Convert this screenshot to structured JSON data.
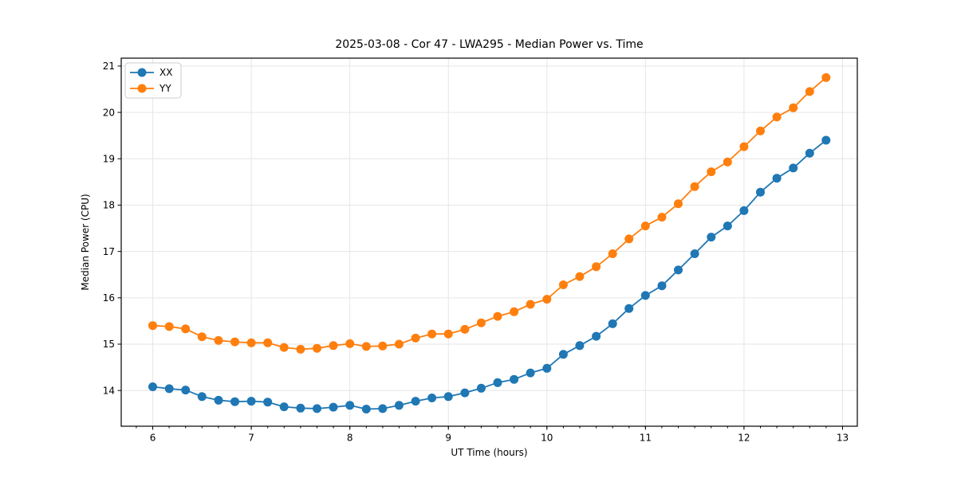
{
  "chart_data": {
    "type": "line",
    "title": "2025-03-08 - Cor 47 - LWA295 - Median Power vs. Time",
    "xlabel": "UT Time (hours)",
    "ylabel": "Median Power (CPU)",
    "xlim": [
      5.68,
      13.15
    ],
    "ylim": [
      13.23,
      21.17
    ],
    "x_ticks": [
      6,
      7,
      8,
      9,
      10,
      11,
      12,
      13
    ],
    "y_ticks": [
      14,
      15,
      16,
      17,
      18,
      19,
      20,
      21
    ],
    "x_minor_step": 0.166667,
    "grid": true,
    "grid_color": "#e6e6e6",
    "legend_position": "upper-left",
    "x": [
      6.0,
      6.167,
      6.333,
      6.5,
      6.667,
      6.833,
      7.0,
      7.167,
      7.333,
      7.5,
      7.667,
      7.833,
      8.0,
      8.167,
      8.333,
      8.5,
      8.667,
      8.833,
      9.0,
      9.167,
      9.333,
      9.5,
      9.667,
      9.833,
      10.0,
      10.167,
      10.333,
      10.5,
      10.667,
      10.833,
      11.0,
      11.167,
      11.333,
      11.5,
      11.667,
      11.833,
      12.0,
      12.167,
      12.333,
      12.5,
      12.667,
      12.833
    ],
    "series": [
      {
        "name": "XX",
        "color": "#1f77b4",
        "values": [
          14.08,
          14.04,
          14.01,
          13.87,
          13.79,
          13.76,
          13.77,
          13.75,
          13.65,
          13.62,
          13.61,
          13.64,
          13.68,
          13.6,
          13.61,
          13.68,
          13.77,
          13.84,
          13.87,
          13.95,
          14.05,
          14.17,
          14.24,
          14.38,
          14.48,
          14.78,
          14.97,
          15.17,
          15.44,
          15.77,
          16.05,
          16.26,
          16.6,
          16.95,
          17.31,
          17.55,
          17.88,
          18.28,
          18.58,
          18.8,
          19.12,
          19.4
        ]
      },
      {
        "name": "YY",
        "color": "#ff7f0e",
        "values": [
          15.4,
          15.38,
          15.33,
          15.16,
          15.08,
          15.05,
          15.03,
          15.03,
          14.93,
          14.89,
          14.91,
          14.97,
          15.01,
          14.95,
          14.96,
          15.0,
          15.13,
          15.22,
          15.22,
          15.32,
          15.46,
          15.6,
          15.7,
          15.86,
          15.97,
          16.28,
          16.46,
          16.67,
          16.95,
          17.27,
          17.55,
          17.74,
          18.03,
          18.4,
          18.72,
          18.93,
          19.26,
          19.6,
          19.9,
          20.1,
          20.45,
          20.75
        ]
      }
    ]
  }
}
